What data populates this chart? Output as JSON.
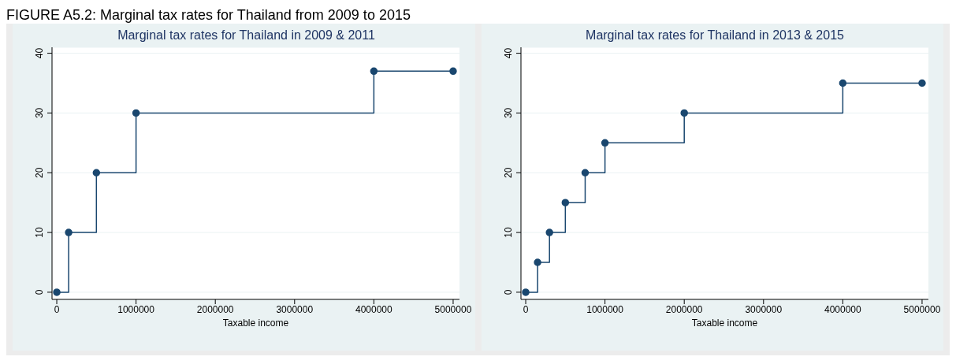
{
  "chart_data": [
    {
      "type": "step",
      "title": "Marginal tax rates for Thailand in 2009 & 2011",
      "xlabel": "Taxable income",
      "annotations": [
        "FIGURE A5.2: Marginal tax rates for Thailand from 2009 to 2015"
      ],
      "x": [
        0,
        150000,
        500000,
        1000000,
        4000000,
        5000000
      ],
      "series": [
        {
          "color": "#1a476f",
          "values": [
            0,
            10,
            20,
            30,
            37,
            37
          ]
        }
      ],
      "xlim": [
        -60000,
        5080000
      ],
      "xticks": [
        0,
        1000000,
        2000000,
        3000000,
        4000000,
        5000000
      ],
      "ylim": [
        -1.2,
        41
      ],
      "yticks": [
        0,
        10,
        20,
        30,
        40
      ],
      "grid": "y",
      "legend": false,
      "marker": "circle"
    },
    {
      "type": "step",
      "title": "Marginal tax rates for Thailand in 2013 & 2015",
      "xlabel": "Taxable income",
      "x": [
        0,
        150000,
        300000,
        500000,
        750000,
        1000000,
        2000000,
        4000000,
        5000000
      ],
      "series": [
        {
          "color": "#1a476f",
          "values": [
            0,
            5,
            10,
            15,
            20,
            25,
            30,
            35,
            35
          ]
        }
      ],
      "xlim": [
        -60000,
        5080000
      ],
      "xticks": [
        0,
        1000000,
        2000000,
        3000000,
        4000000,
        5000000
      ],
      "ylim": [
        -1.2,
        41
      ],
      "yticks": [
        0,
        10,
        20,
        30,
        40
      ],
      "grid": "y",
      "legend": false,
      "marker": "circle"
    }
  ]
}
